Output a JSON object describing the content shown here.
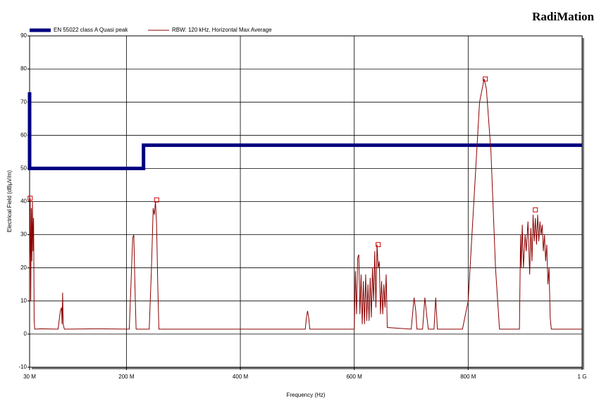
{
  "chart_data": {
    "type": "line",
    "brand": "RadiMation",
    "xlabel": "Frequency (Hz)",
    "ylabel": "Electrical Field (dBµV/m)",
    "xlim": [
      30000000.0,
      1000000000.0
    ],
    "ylim": [
      -10,
      90
    ],
    "xticks": [
      {
        "value": 30000000.0,
        "label": "30 M"
      },
      {
        "value": 200000000.0,
        "label": "200 M"
      },
      {
        "value": 400000000.0,
        "label": "400 M"
      },
      {
        "value": 600000000.0,
        "label": "600 M"
      },
      {
        "value": 800000000.0,
        "label": "800 M"
      },
      {
        "value": 1000000000.0,
        "label": "1 G"
      }
    ],
    "yticks": [
      -10,
      0,
      10,
      20,
      30,
      40,
      50,
      60,
      70,
      80,
      90
    ],
    "grid": true,
    "series": [
      {
        "name": "EN 55022 class A Quasi peak",
        "color": "#000080",
        "width": 5,
        "x": [
          30000000.0,
          30000000.0,
          230000000.0,
          230000000.0,
          1000000000.0
        ],
        "values": [
          73,
          50,
          50,
          57,
          57
        ]
      },
      {
        "name": "RBW: 120 kHz, Horizontal Max Average",
        "color": "#8b0000",
        "width": 1,
        "x": [
          30000000.0,
          31000000.0,
          32000000.0,
          33000000.0,
          34000000.0,
          35000000.0,
          36000000.0,
          37000000.0,
          38000000.0,
          39000000.0,
          50000000.0,
          80000000.0,
          84000000.0,
          86000000.0,
          87000000.0,
          88000000.0,
          89000000.0,
          91000000.0,
          150000000.0,
          205000000.0,
          208000000.0,
          211000000.0,
          213000000.0,
          215000000.0,
          217000000.0,
          240000000.0,
          244000000.0,
          247000000.0,
          249000000.0,
          251000000.0,
          253000000.0,
          255000000.0,
          257000000.0,
          400000000.0,
          514000000.0,
          516000000.0,
          518000000.0,
          520000000.0,
          522000000.0,
          600000000.0,
          602000000.0,
          604000000.0,
          606000000.0,
          608000000.0,
          610000000.0,
          612000000.0,
          614000000.0,
          616000000.0,
          618000000.0,
          620000000.0,
          622000000.0,
          624000000.0,
          626000000.0,
          628000000.0,
          630000000.0,
          632000000.0,
          634000000.0,
          636000000.0,
          638000000.0,
          640000000.0,
          642000000.0,
          644000000.0,
          646000000.0,
          648000000.0,
          650000000.0,
          652000000.0,
          654000000.0,
          656000000.0,
          658000000.0,
          700000000.0,
          705000000.0,
          708000000.0,
          710000000.0,
          720000000.0,
          724000000.0,
          727000000.0,
          730000000.0,
          740000000.0,
          743000000.0,
          746000000.0,
          790000000.0,
          800000000.0,
          810000000.0,
          820000000.0,
          828000000.0,
          832000000.0,
          840000000.0,
          848000000.0,
          855000000.0,
          890000000.0,
          892000000.0,
          893000000.0,
          895000000.0,
          897000000.0,
          900000000.0,
          902000000.0,
          905000000.0,
          908000000.0,
          910000000.0,
          912000000.0,
          914000000.0,
          916000000.0,
          918000000.0,
          920000000.0,
          922000000.0,
          924000000.0,
          926000000.0,
          928000000.0,
          930000000.0,
          932000000.0,
          934000000.0,
          936000000.0,
          938000000.0,
          940000000.0,
          942000000.0,
          944000000.0,
          946000000.0,
          1000000000.0
        ],
        "values": [
          20,
          41,
          10,
          38,
          22,
          40,
          25,
          35,
          4,
          1.5,
          1.6,
          1.5,
          7,
          8,
          3,
          12.5,
          3,
          1.5,
          1.6,
          1.5,
          15,
          29,
          30,
          14,
          1.5,
          1.5,
          20,
          38,
          36,
          40,
          33,
          15,
          1.5,
          1.5,
          1.5,
          5,
          7,
          5,
          1.5,
          1.5,
          19,
          6,
          23,
          24,
          6,
          18,
          3,
          16,
          3,
          18,
          4,
          15,
          4,
          17,
          5,
          20,
          10,
          25,
          8,
          27,
          20,
          22,
          6,
          16,
          6,
          15,
          8,
          18,
          2,
          1.5,
          11,
          7,
          1.5,
          1.5,
          11,
          6,
          1.5,
          1.5,
          11,
          1.5,
          1.5,
          10,
          40,
          70,
          77,
          74,
          55,
          20,
          1.5,
          1.5,
          30,
          20,
          33,
          20,
          30,
          25,
          34,
          18,
          32,
          22,
          36,
          28,
          35,
          27,
          36,
          28,
          34,
          30,
          33,
          25,
          30,
          22,
          27,
          15,
          20,
          5,
          1.5,
          1.5
        ]
      }
    ],
    "markers": {
      "color": "#cc0000",
      "x": [
        31000000.0,
        253000000.0,
        642000000.0,
        830000000.0,
        918000000.0
      ],
      "values": [
        41,
        40.5,
        27,
        77,
        37.5
      ]
    }
  }
}
